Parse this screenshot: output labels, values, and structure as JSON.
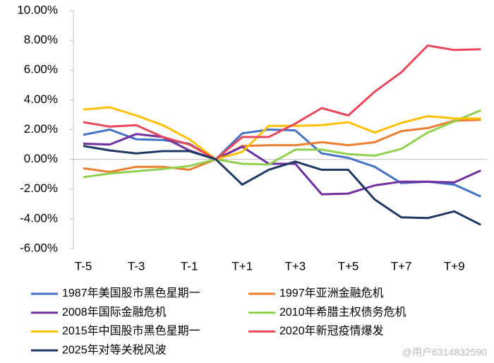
{
  "chart_data": {
    "type": "line",
    "categories": [
      "T-5",
      null,
      "T-3",
      null,
      "T-1",
      null,
      "T+1",
      null,
      "T+3",
      null,
      "T+5",
      null,
      "T+7",
      null,
      "T+9",
      null
    ],
    "ylim": [
      -6,
      10
    ],
    "yticks": [
      {
        "value": -6,
        "label": "-6.00%"
      },
      {
        "value": -4,
        "label": "-4.00%"
      },
      {
        "value": -2,
        "label": "-2.00%"
      },
      {
        "value": 0,
        "label": "0.00%"
      },
      {
        "value": 2,
        "label": "2.00%"
      },
      {
        "value": 4,
        "label": "4.00%"
      },
      {
        "value": 6,
        "label": "6.00%"
      },
      {
        "value": 8,
        "label": "8.00%"
      },
      {
        "value": 10,
        "label": "10.00%"
      }
    ],
    "grid": false,
    "legend": "bottom",
    "series": [
      {
        "name": "1987年美国股市黑色星期一",
        "color": "#4472c4",
        "values": [
          1.65,
          2.0,
          1.35,
          1.3,
          1.05,
          0,
          1.75,
          2.0,
          1.95,
          0.4,
          0.1,
          -0.5,
          -1.6,
          -1.5,
          -1.7,
          -2.5
        ]
      },
      {
        "name": "1997年亚洲金融危机",
        "color": "#ed7d31",
        "values": [
          -0.6,
          -0.85,
          -0.5,
          -0.5,
          -0.7,
          0,
          0.9,
          0.95,
          0.95,
          1.15,
          0.95,
          1.15,
          1.9,
          2.1,
          2.6,
          2.65
        ]
      },
      {
        "name": "2008年国际金融危机",
        "color": "#7030a0",
        "values": [
          1.05,
          1.0,
          1.7,
          1.5,
          0.6,
          0,
          0.85,
          -0.3,
          -0.3,
          -2.35,
          -2.3,
          -1.75,
          -1.5,
          -1.5,
          -1.55,
          -0.75
        ]
      },
      {
        "name": "2010年希腊主权债务危机",
        "color": "#92d050",
        "values": [
          -1.2,
          -0.95,
          -0.8,
          -0.65,
          -0.45,
          0,
          -0.3,
          -0.35,
          0.65,
          0.65,
          0.35,
          0.25,
          0.7,
          1.8,
          2.55,
          3.3
        ]
      },
      {
        "name": "2015年中国股市黑色星期一",
        "color": "#ffc000",
        "values": [
          3.35,
          3.5,
          2.95,
          2.3,
          1.35,
          0,
          0.5,
          2.25,
          2.25,
          2.3,
          2.5,
          1.8,
          2.45,
          2.9,
          2.75,
          2.75
        ]
      },
      {
        "name": "2020年新冠疫情爆发",
        "color": "#e8475a",
        "values": [
          2.5,
          2.2,
          2.3,
          1.5,
          1.0,
          0,
          1.5,
          1.5,
          2.4,
          3.45,
          2.95,
          4.55,
          5.85,
          7.65,
          7.35,
          7.4
        ]
      },
      {
        "name": "2025年对等关税风波",
        "color": "#203864",
        "values": [
          0.9,
          0.6,
          0.4,
          0.55,
          0.55,
          0,
          -1.7,
          -0.7,
          -0.15,
          -0.7,
          -0.7,
          -2.7,
          -3.9,
          -3.95,
          -3.5,
          -4.4
        ]
      }
    ]
  },
  "watermark": "@用户6314832590"
}
